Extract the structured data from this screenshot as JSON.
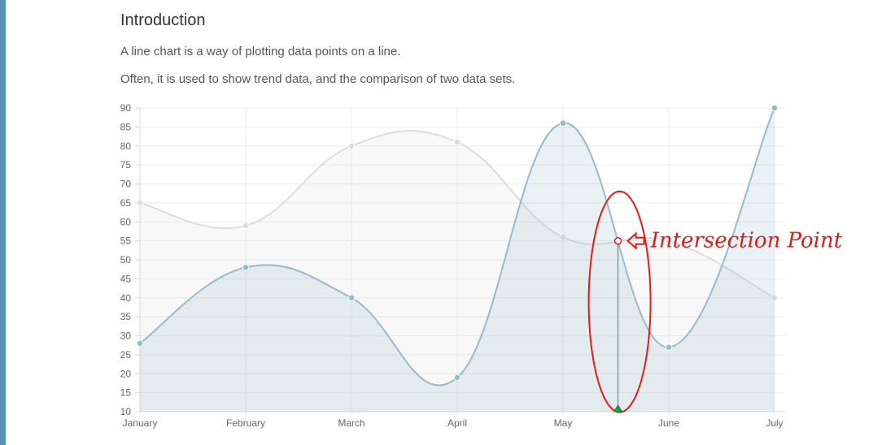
{
  "page": {
    "title": "Introduction",
    "paragraphs": [
      "A line chart is a way of plotting data points on a line.",
      "Often, it is used to show trend data, and the comparison of two data sets."
    ]
  },
  "chart_data": {
    "type": "line",
    "categories": [
      "January",
      "February",
      "March",
      "April",
      "May",
      "June",
      "July"
    ],
    "series": [
      {
        "values": [
          65,
          59,
          80,
          81,
          56,
          55,
          40
        ],
        "color": "#dcdcdc",
        "fill": "rgba(220,220,220,0.2)"
      },
      {
        "values": [
          28,
          48,
          40,
          19,
          86,
          27,
          90
        ],
        "color": "#97bbcd",
        "fill": "rgba(151,187,205,0.2)"
      }
    ],
    "ylim": [
      10,
      90
    ],
    "yticks": [
      10,
      15,
      20,
      25,
      30,
      35,
      40,
      45,
      50,
      55,
      60,
      65,
      70,
      75,
      80,
      85,
      90
    ],
    "grid": true,
    "curve": "smooth",
    "annotation": {
      "label": "Intersection Point",
      "x_category_position": 4.52,
      "y_value": 55,
      "color": "#e11b1b",
      "marker_color": "#22a34a"
    }
  }
}
